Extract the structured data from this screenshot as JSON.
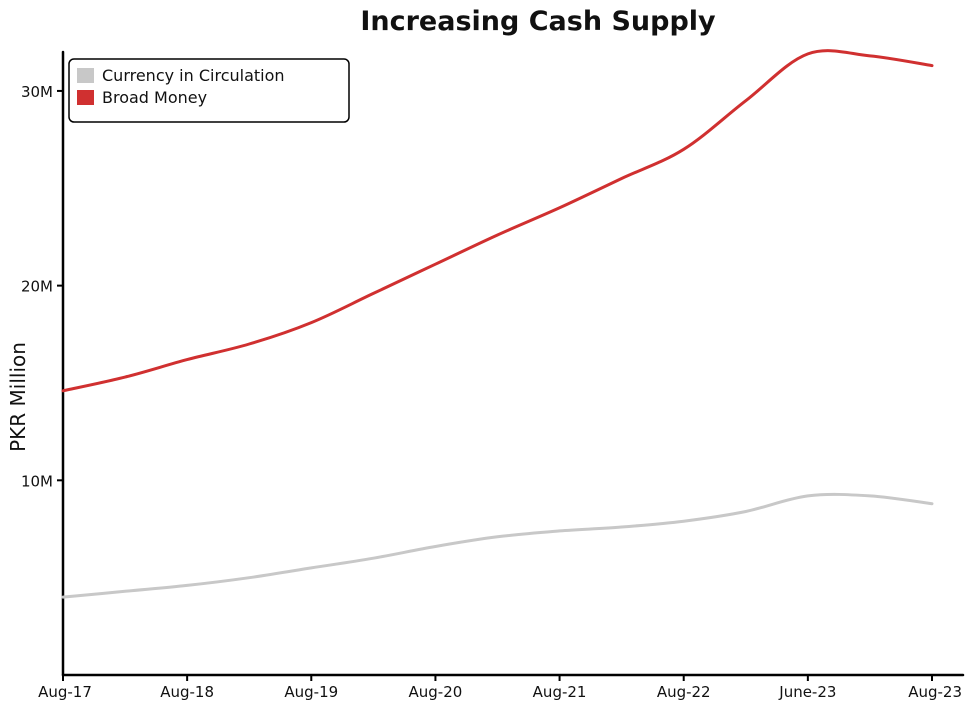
{
  "chart_data": {
    "type": "line",
    "title": "Increasing Cash Supply",
    "xlabel": "",
    "ylabel": "PKR Million",
    "x_tick_labels": [
      "Aug-17",
      "Aug-18",
      "Aug-19",
      "Aug-20",
      "Aug-21",
      "Aug-22",
      "June-23",
      "Aug-23"
    ],
    "y_tick_labels": [
      "10M",
      "20M",
      "30M"
    ],
    "y_ticks": [
      10,
      20,
      30
    ],
    "ylim": [
      0,
      32
    ],
    "xlim": [
      0,
      7.2
    ],
    "grid": false,
    "legend_position": "top-left",
    "series": [
      {
        "name": "Currency in Circulation",
        "color": "#c8c8c8",
        "x": [
          0,
          0.5,
          1,
          1.5,
          2,
          2.5,
          3,
          3.5,
          4,
          4.5,
          5,
          5.5,
          6,
          6.5,
          7.0
        ],
        "values": [
          4.0,
          4.3,
          4.6,
          5.0,
          5.5,
          6.0,
          6.6,
          7.1,
          7.4,
          7.6,
          7.9,
          8.4,
          9.2,
          9.2,
          8.8
        ]
      },
      {
        "name": "Broad Money",
        "color": "#d03030",
        "x": [
          0,
          0.5,
          1,
          1.5,
          2,
          2.5,
          3,
          3.5,
          4,
          4.5,
          5,
          5.5,
          6,
          6.5,
          7.0
        ],
        "values": [
          14.6,
          15.3,
          16.2,
          17.0,
          18.1,
          19.6,
          21.1,
          22.6,
          24.0,
          25.5,
          27.0,
          29.5,
          31.9,
          31.8,
          31.3
        ]
      }
    ]
  }
}
